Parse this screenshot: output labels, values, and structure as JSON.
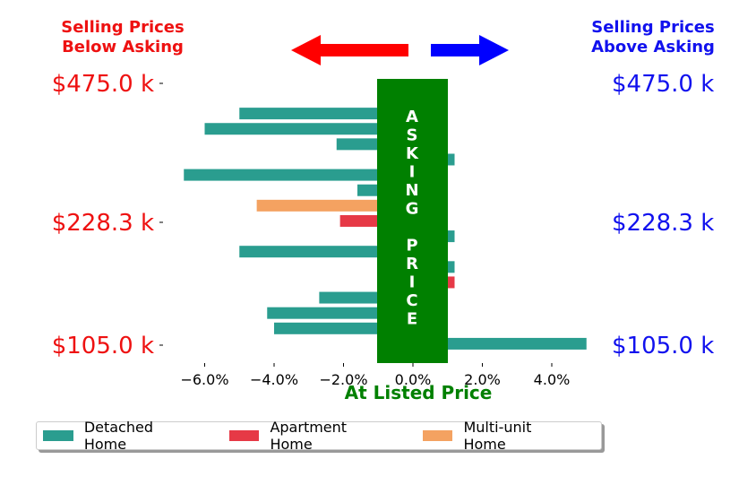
{
  "header": {
    "left_title_line1": "Selling Prices",
    "left_title_line2": "Below Asking",
    "right_title_line1": "Selling Prices",
    "right_title_line2": "Above Asking",
    "left_color": "#ee1111",
    "right_color": "#1111ee",
    "left_arrow_color": "#ff0000",
    "right_arrow_color": "#0000ff"
  },
  "chart_data": {
    "type": "bar",
    "orientation": "horizontal",
    "xlabel": "At Listed Price",
    "xlim": [
      -7.0,
      5.0
    ],
    "x_ticks": [
      -6,
      -4,
      -2,
      0,
      2,
      4
    ],
    "x_tick_labels": [
      "−6.0%",
      "−4.0%",
      "−2.0%",
      "0.0%",
      "2.0%",
      "4.0%"
    ],
    "y_tick_labels_left": [
      "$475.0 k",
      "$228.3 k",
      "$105.0 k"
    ],
    "y_tick_labels_right": [
      "$475.0 k",
      "$228.3 k",
      "$105.0 k"
    ],
    "center_band_text": [
      "A",
      "S",
      "K",
      "I",
      "N",
      "G",
      "",
      "P",
      "R",
      "I",
      "C",
      "E"
    ],
    "center_band_color": "#008000",
    "series": [
      {
        "name": "Detached Home",
        "color": "#2a9d8f"
      },
      {
        "name": "Apartment Home",
        "color": "#e63946"
      },
      {
        "name": "Multi-unit Home",
        "color": "#f4a261"
      }
    ],
    "bars": [
      {
        "series": "Detached Home",
        "value": 1.0
      },
      {
        "series": "Detached Home",
        "value": -5.0
      },
      {
        "series": "Detached Home",
        "value": -6.0
      },
      {
        "series": "Detached Home",
        "value": -2.2
      },
      {
        "series": "Detached Home",
        "value": 1.2
      },
      {
        "series": "Detached Home",
        "value": -6.6
      },
      {
        "series": "Detached Home",
        "value": -1.6
      },
      {
        "series": "Multi-unit Home",
        "value": -4.5
      },
      {
        "series": "Apartment Home",
        "value": -2.1
      },
      {
        "series": "Detached Home",
        "value": 1.2
      },
      {
        "series": "Detached Home",
        "value": -5.0
      },
      {
        "series": "Detached Home",
        "value": 1.2
      },
      {
        "series": "Apartment Home",
        "value": 1.2
      },
      {
        "series": "Detached Home",
        "value": -2.7
      },
      {
        "series": "Detached Home",
        "value": -4.2
      },
      {
        "series": "Detached Home",
        "value": -4.0
      },
      {
        "series": "Detached Home",
        "value": 5.0
      }
    ]
  },
  "legend": {
    "items": [
      {
        "label": "Detached Home",
        "color": "#2a9d8f"
      },
      {
        "label": "Apartment Home",
        "color": "#e63946"
      },
      {
        "label": "Multi-unit Home",
        "color": "#f4a261"
      }
    ]
  }
}
